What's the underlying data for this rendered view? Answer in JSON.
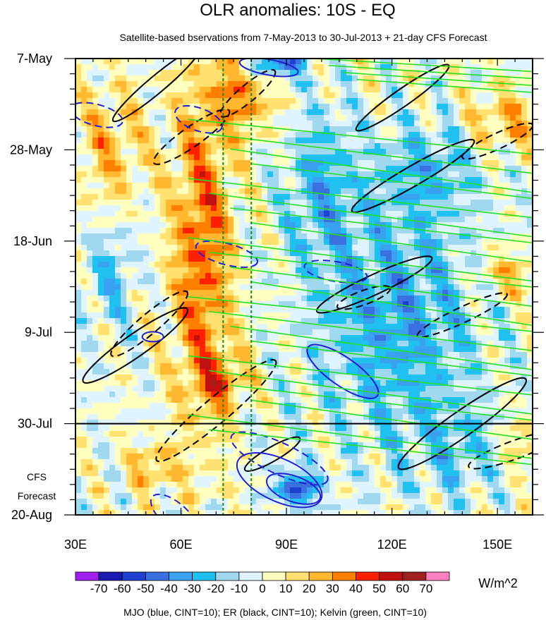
{
  "chart_data": {
    "type": "heatmap",
    "title": "OLR anomalies: 10S - EQ",
    "subtitle": "Satellite-based bservations from 7-May-2013 to 30-Jul-2013 + 21-day CFS Forecast",
    "x_range": [
      30,
      160
    ],
    "x_ticks": [
      {
        "value": 30,
        "label": "30E"
      },
      {
        "value": 60,
        "label": "60E"
      },
      {
        "value": 90,
        "label": "90E"
      },
      {
        "value": 120,
        "label": "120E"
      },
      {
        "value": 150,
        "label": "150E"
      }
    ],
    "y_range": [
      "7-May",
      "20-Aug"
    ],
    "y_ticks": [
      {
        "day": 0,
        "label": "7-May"
      },
      {
        "day": 21,
        "label": "28-May"
      },
      {
        "day": 42,
        "label": "18-Jun"
      },
      {
        "day": 63,
        "label": "9-Jul"
      },
      {
        "day": 84,
        "label": "30-Jul"
      },
      {
        "day": 105,
        "label": "20-Aug"
      }
    ],
    "forecast_start_day": 84,
    "forecast_label_line1": "CFS",
    "forecast_label_line2": "Forecast",
    "reference_longitudes": [
      72,
      80
    ],
    "colorbar": {
      "unit": "W/m^2",
      "levels": [
        -70,
        -60,
        -50,
        -40,
        -30,
        -20,
        -10,
        0,
        10,
        20,
        30,
        40,
        50,
        60,
        70
      ],
      "level_labels": [
        "-70",
        "-60",
        "-50",
        "-40",
        "-30",
        "-20",
        "-10",
        "0",
        "10",
        "20",
        "30",
        "40",
        "50",
        "60",
        "70"
      ],
      "colors": [
        "#a020f0",
        "#1a1ab0",
        "#2040d0",
        "#3a70e0",
        "#3aa0f0",
        "#20c0f0",
        "#a0d8f0",
        "#e0f4ff",
        "#ffffc0",
        "#ffe070",
        "#ffb830",
        "#ff8000",
        "#ff2000",
        "#c01010",
        "#a02020",
        "#ff80c0"
      ]
    },
    "footer": "MJO (blue, CINT=10); ER (black, CINT=10); Kelvin (green, CINT=10)",
    "contour_colors": {
      "mjo": "#2020d0",
      "er": "#000000",
      "kelvin": "#20e020"
    }
  }
}
